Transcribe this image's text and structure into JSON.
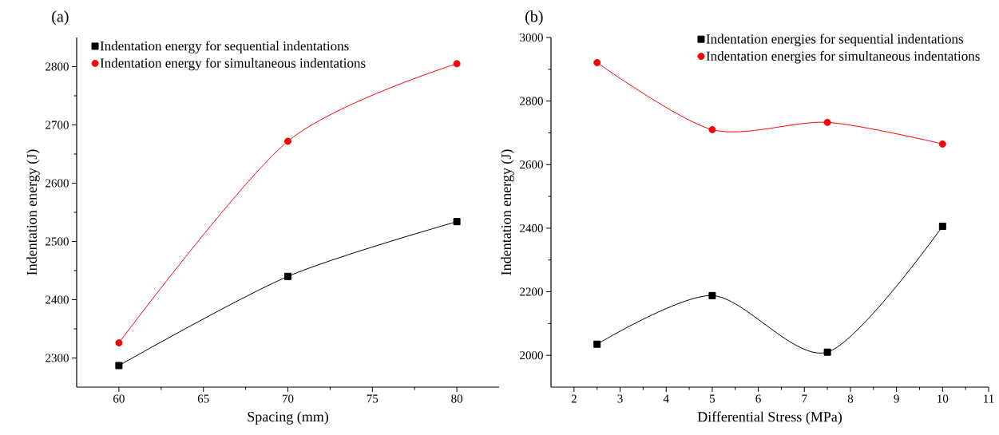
{
  "chart_data": [
    {
      "type": "line",
      "title": "(a)",
      "xlabel": "Spacing (mm)",
      "ylabel": "Indentation energy (J)",
      "x": [
        60,
        70,
        80
      ],
      "xlim": [
        57.5,
        82.5
      ],
      "ylim": [
        2250,
        2850
      ],
      "xticks": [
        60,
        65,
        70,
        75,
        80
      ],
      "yticks": [
        2300,
        2400,
        2500,
        2600,
        2700,
        2800
      ],
      "legend": "top left",
      "series": [
        {
          "name": "Indentation energy for sequential indentations",
          "color": "#000000",
          "marker": "square",
          "values": [
            2287,
            2440,
            2534
          ]
        },
        {
          "name": "Indentation energy for simultaneous indentations",
          "color": "#ff0000",
          "marker": "circle",
          "values": [
            2326,
            2672,
            2805
          ]
        }
      ]
    },
    {
      "type": "line",
      "title": "(b)",
      "xlabel": "Differential Stress (MPa)",
      "ylabel": "Indentation energy (J)",
      "x": [
        2.5,
        5,
        7.5,
        10
      ],
      "xlim": [
        1.5,
        11
      ],
      "ylim": [
        1900,
        3000
      ],
      "xticks": [
        2,
        3,
        4,
        5,
        6,
        7,
        8,
        9,
        10,
        11
      ],
      "yticks": [
        2000,
        2200,
        2400,
        2600,
        2800,
        3000
      ],
      "legend": "top right",
      "series": [
        {
          "name": "Indentation energies for sequential indentations",
          "color": "#000000",
          "marker": "square",
          "values": [
            2035,
            2188,
            2010,
            2406
          ]
        },
        {
          "name": "Indentation energies for simultaneous indentations",
          "color": "#ff0000",
          "marker": "circle",
          "values": [
            2921,
            2710,
            2733,
            2665
          ]
        }
      ]
    }
  ]
}
